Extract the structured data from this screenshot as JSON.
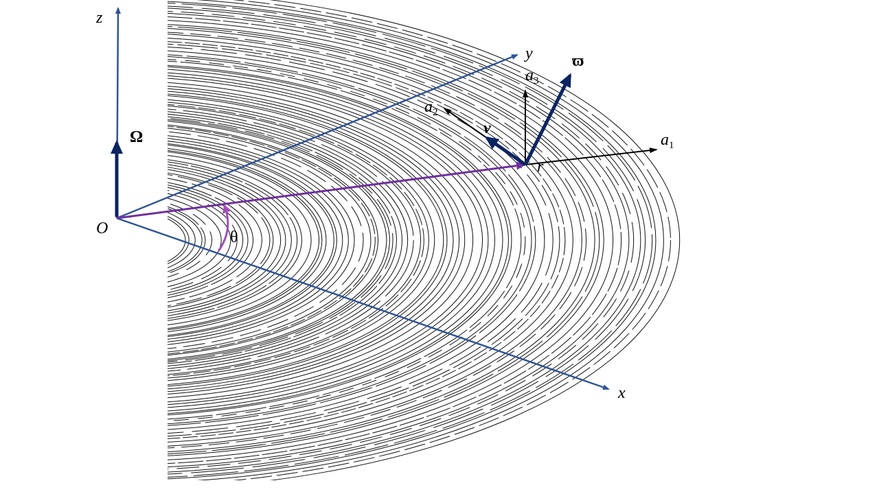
{
  "labels": {
    "z": "z",
    "y": "y",
    "x": "x",
    "origin": "O",
    "Omega": "Ω",
    "theta": "θ",
    "a3": {
      "base": "a",
      "sub": "3"
    },
    "a2": {
      "base": "a",
      "sub": "2"
    },
    "a1": {
      "base": "a",
      "sub": "1"
    },
    "v": "v",
    "r": "r",
    "omega_bar": "ϖ"
  }
}
